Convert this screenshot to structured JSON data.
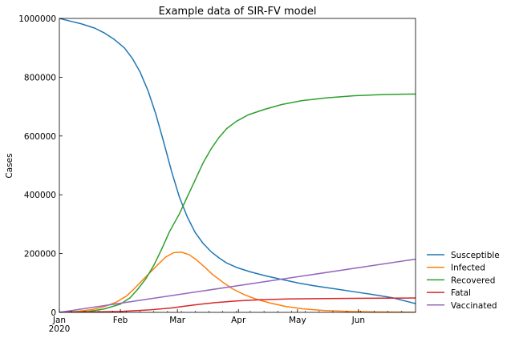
{
  "chart_data": {
    "type": "line",
    "title": "Example data of SIR-FV model",
    "xlabel": "",
    "ylabel": "Cases",
    "xlim": [
      "2020-01-01",
      "2020-06-30"
    ],
    "ylim": [
      0,
      1000000
    ],
    "x_ticks": [
      {
        "date": "2020-01-01",
        "label": "Jan",
        "sublabel": "2020"
      },
      {
        "date": "2020-02-01",
        "label": "Feb"
      },
      {
        "date": "2020-03-01",
        "label": "Mar"
      },
      {
        "date": "2020-04-01",
        "label": "Apr"
      },
      {
        "date": "2020-05-01",
        "label": "May"
      },
      {
        "date": "2020-06-01",
        "label": "Jun"
      }
    ],
    "y_ticks": [
      0,
      200000,
      400000,
      600000,
      800000,
      1000000
    ],
    "grid": false,
    "legend_position": "right-bottom",
    "series": [
      {
        "name": "Susceptible",
        "color": "#1f77b4",
        "points": [
          [
            "2020-01-01",
            1000000
          ],
          [
            "2020-01-07",
            990000
          ],
          [
            "2020-01-12",
            982000
          ],
          [
            "2020-01-19",
            967000
          ],
          [
            "2020-01-24",
            950000
          ],
          [
            "2020-01-29",
            928000
          ],
          [
            "2020-02-03",
            900000
          ],
          [
            "2020-02-07",
            865000
          ],
          [
            "2020-02-11",
            818000
          ],
          [
            "2020-02-15",
            755000
          ],
          [
            "2020-02-19",
            675000
          ],
          [
            "2020-02-23",
            580000
          ],
          [
            "2020-02-27",
            480000
          ],
          [
            "2020-03-02",
            392000
          ],
          [
            "2020-03-06",
            325000
          ],
          [
            "2020-03-10",
            272000
          ],
          [
            "2020-03-14",
            235000
          ],
          [
            "2020-03-18",
            207000
          ],
          [
            "2020-03-22",
            186000
          ],
          [
            "2020-03-26",
            168000
          ],
          [
            "2020-03-31",
            153000
          ],
          [
            "2020-04-07",
            138000
          ],
          [
            "2020-04-15",
            124000
          ],
          [
            "2020-04-23",
            112000
          ],
          [
            "2020-05-02",
            99000
          ],
          [
            "2020-05-10",
            90000
          ],
          [
            "2020-05-20",
            80000
          ],
          [
            "2020-05-30",
            70000
          ],
          [
            "2020-06-08",
            61000
          ],
          [
            "2020-06-18",
            50000
          ],
          [
            "2020-06-30",
            30000
          ]
        ]
      },
      {
        "name": "Infected",
        "color": "#ff7f0e",
        "points": [
          [
            "2020-01-01",
            0
          ],
          [
            "2020-01-10",
            3000
          ],
          [
            "2020-01-18",
            10000
          ],
          [
            "2020-01-24",
            20000
          ],
          [
            "2020-01-30",
            35000
          ],
          [
            "2020-02-04",
            55000
          ],
          [
            "2020-02-08",
            80000
          ],
          [
            "2020-02-12",
            108000
          ],
          [
            "2020-02-16",
            135000
          ],
          [
            "2020-02-20",
            162000
          ],
          [
            "2020-02-24",
            188000
          ],
          [
            "2020-02-28",
            203000
          ],
          [
            "2020-03-03",
            205000
          ],
          [
            "2020-03-07",
            196000
          ],
          [
            "2020-03-11",
            177000
          ],
          [
            "2020-03-15",
            153000
          ],
          [
            "2020-03-19",
            128000
          ],
          [
            "2020-03-24",
            103000
          ],
          [
            "2020-03-29",
            80000
          ],
          [
            "2020-04-04",
            60000
          ],
          [
            "2020-04-10",
            45000
          ],
          [
            "2020-04-17",
            32000
          ],
          [
            "2020-04-25",
            20000
          ],
          [
            "2020-05-04",
            12000
          ],
          [
            "2020-05-15",
            6000
          ],
          [
            "2020-05-28",
            3000
          ],
          [
            "2020-06-10",
            1500
          ],
          [
            "2020-06-30",
            500
          ]
        ]
      },
      {
        "name": "Recovered",
        "color": "#2ca02c",
        "points": [
          [
            "2020-01-01",
            0
          ],
          [
            "2020-01-16",
            3000
          ],
          [
            "2020-01-24",
            12000
          ],
          [
            "2020-02-01",
            28000
          ],
          [
            "2020-02-06",
            50000
          ],
          [
            "2020-02-10",
            80000
          ],
          [
            "2020-02-14",
            115000
          ],
          [
            "2020-02-18",
            160000
          ],
          [
            "2020-02-22",
            215000
          ],
          [
            "2020-02-26",
            275000
          ],
          [
            "2020-03-02",
            335000
          ],
          [
            "2020-03-06",
            393000
          ],
          [
            "2020-03-10",
            450000
          ],
          [
            "2020-03-14",
            508000
          ],
          [
            "2020-03-18",
            555000
          ],
          [
            "2020-03-22",
            594000
          ],
          [
            "2020-03-26",
            625000
          ],
          [
            "2020-03-31",
            650000
          ],
          [
            "2020-04-06",
            672000
          ],
          [
            "2020-04-14",
            690000
          ],
          [
            "2020-04-23",
            707000
          ],
          [
            "2020-05-03",
            720000
          ],
          [
            "2020-05-16",
            730000
          ],
          [
            "2020-05-30",
            737000
          ],
          [
            "2020-06-14",
            741000
          ],
          [
            "2020-06-30",
            743000
          ]
        ]
      },
      {
        "name": "Fatal",
        "color": "#d62728",
        "points": [
          [
            "2020-01-01",
            0
          ],
          [
            "2020-02-01",
            3000
          ],
          [
            "2020-02-15",
            8000
          ],
          [
            "2020-02-27",
            15000
          ],
          [
            "2020-03-09",
            25000
          ],
          [
            "2020-03-20",
            33000
          ],
          [
            "2020-03-31",
            39000
          ],
          [
            "2020-04-12",
            43000
          ],
          [
            "2020-04-26",
            45500
          ],
          [
            "2020-05-15",
            47000
          ],
          [
            "2020-06-05",
            48000
          ],
          [
            "2020-06-30",
            49000
          ]
        ]
      },
      {
        "name": "Vaccinated",
        "color": "#9467bd",
        "points": [
          [
            "2020-01-01",
            0
          ],
          [
            "2020-06-30",
            181000
          ]
        ]
      }
    ]
  }
}
